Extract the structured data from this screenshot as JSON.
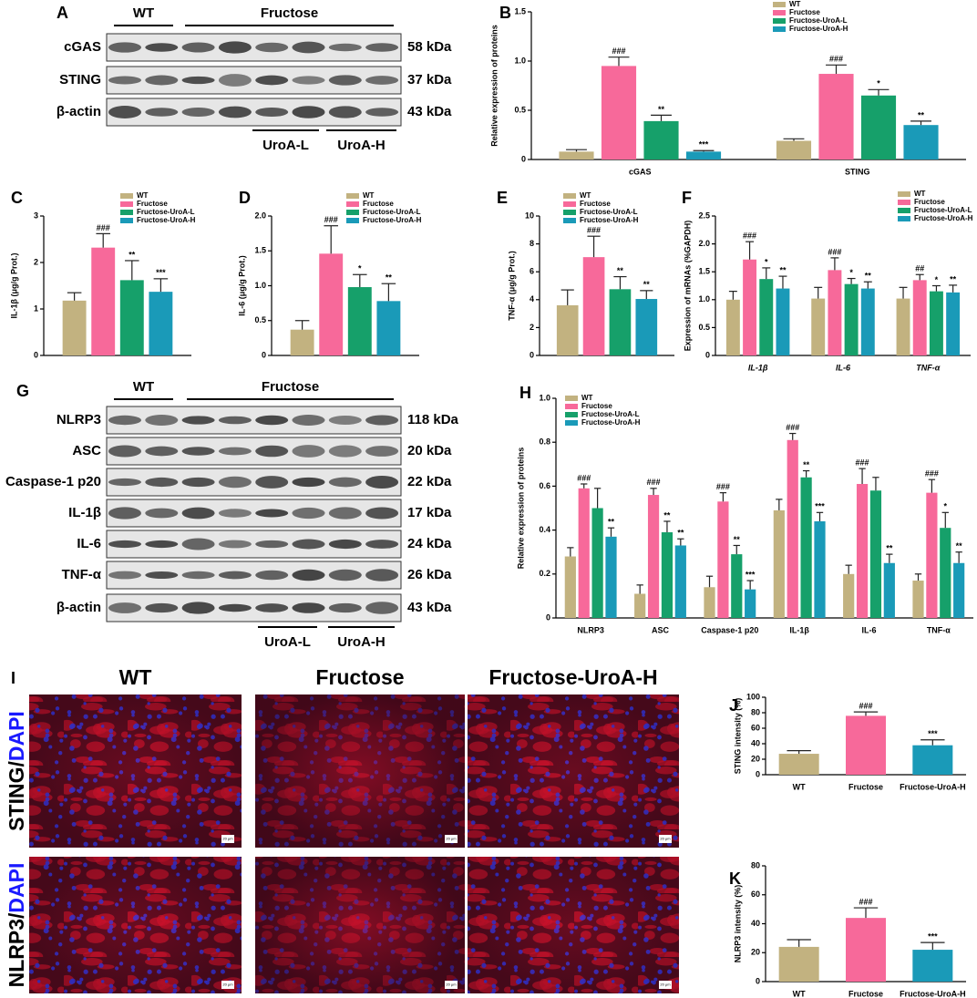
{
  "chart_data": [
    {
      "type": "bar",
      "panel": "B",
      "ylabel": "Relative expression of proteins",
      "categories": [
        "cGAS",
        "STING"
      ],
      "ylim": [
        0,
        1.5
      ],
      "yticks": [
        0,
        0.5,
        {
          "value": 1,
          "label": "1.0"
        },
        1.5
      ],
      "series": [
        {
          "name": "WT",
          "color": "#c2b280",
          "values": [
            0.08,
            0.19
          ],
          "errors": [
            0.02,
            0.02
          ],
          "annotations": [
            null,
            null
          ]
        },
        {
          "name": "Fructose",
          "color": "#f7699a",
          "values": [
            0.95,
            0.87
          ],
          "errors": [
            0.09,
            0.09
          ],
          "annotations": [
            "###",
            "###"
          ]
        },
        {
          "name": "Fructose-UroA-L",
          "color": "#16a06a",
          "values": [
            0.39,
            0.65
          ],
          "errors": [
            0.06,
            0.06
          ],
          "annotations": [
            "**",
            "*"
          ]
        },
        {
          "name": "Fructose-UroA-H",
          "color": "#1a9ab8",
          "values": [
            0.08,
            0.35
          ],
          "errors": [
            0.01,
            0.04
          ],
          "annotations": [
            "***",
            "**"
          ]
        }
      ]
    },
    {
      "type": "bar",
      "panel": "C",
      "ylabel": "IL-1β (μg/g Prot.)",
      "categories": [
        null
      ],
      "ylim": [
        0,
        3
      ],
      "yticks": [
        0,
        1,
        2,
        3
      ],
      "series": [
        {
          "name": "WT",
          "color": "#c2b280",
          "values": [
            1.18
          ],
          "errors": [
            0.17
          ],
          "annotations": [
            null
          ]
        },
        {
          "name": "Fructose",
          "color": "#f7699a",
          "values": [
            2.32
          ],
          "errors": [
            0.3
          ],
          "annotations": [
            "###"
          ]
        },
        {
          "name": "Fructose-UroA-L",
          "color": "#16a06a",
          "values": [
            1.62
          ],
          "errors": [
            0.42
          ],
          "annotations": [
            "**"
          ]
        },
        {
          "name": "Fructose-UroA-H",
          "color": "#1a9ab8",
          "values": [
            1.37
          ],
          "errors": [
            0.28
          ],
          "annotations": [
            "***"
          ]
        }
      ]
    },
    {
      "type": "bar",
      "panel": "D",
      "ylabel": "IL-6 (μg/g Prot.)",
      "categories": [
        null
      ],
      "ylim": [
        0,
        2
      ],
      "yticks": [
        0,
        0.5,
        {
          "value": 1,
          "label": "1.0"
        },
        1.5,
        {
          "value": 2,
          "label": "2.0"
        }
      ],
      "series": [
        {
          "name": "WT",
          "color": "#c2b280",
          "values": [
            0.37
          ],
          "errors": [
            0.13
          ],
          "annotations": [
            null
          ]
        },
        {
          "name": "Fructose",
          "color": "#f7699a",
          "values": [
            1.46
          ],
          "errors": [
            0.4
          ],
          "annotations": [
            "###"
          ]
        },
        {
          "name": "Fructose-UroA-L",
          "color": "#16a06a",
          "values": [
            0.98
          ],
          "errors": [
            0.18
          ],
          "annotations": [
            "*"
          ]
        },
        {
          "name": "Fructose-UroA-H",
          "color": "#1a9ab8",
          "values": [
            0.78
          ],
          "errors": [
            0.25
          ],
          "annotations": [
            "**"
          ]
        }
      ]
    },
    {
      "type": "bar",
      "panel": "E",
      "ylabel": "TNF-α (μg/g Prot.)",
      "categories": [
        null
      ],
      "ylim": [
        0,
        10
      ],
      "yticks": [
        0,
        2,
        4,
        6,
        8,
        10
      ],
      "series": [
        {
          "name": "WT",
          "color": "#c2b280",
          "values": [
            3.6
          ],
          "errors": [
            1.1
          ],
          "annotations": [
            null
          ]
        },
        {
          "name": "Fructose",
          "color": "#f7699a",
          "values": [
            7.05
          ],
          "errors": [
            1.5
          ],
          "annotations": [
            "###"
          ]
        },
        {
          "name": "Fructose-UroA-L",
          "color": "#16a06a",
          "values": [
            4.75
          ],
          "errors": [
            0.9
          ],
          "annotations": [
            "**"
          ]
        },
        {
          "name": "Fructose-UroA-H",
          "color": "#1a9ab8",
          "values": [
            4.05
          ],
          "errors": [
            0.6
          ],
          "annotations": [
            "**"
          ]
        }
      ]
    },
    {
      "type": "bar",
      "panel": "F",
      "ylabel": "Expression of mRNAs (%GAPDH)",
      "italic_categories": true,
      "categories": [
        "IL-1β",
        "IL-6",
        "TNF-α"
      ],
      "ylim": [
        0,
        2.5
      ],
      "yticks": [
        0,
        0.5,
        {
          "value": 1,
          "label": "1.0"
        },
        1.5,
        {
          "value": 2,
          "label": "2.0"
        },
        2.5
      ],
      "series": [
        {
          "name": "WT",
          "color": "#c2b280",
          "values": [
            1.0,
            1.02,
            1.02
          ],
          "errors": [
            0.15,
            0.2,
            0.2
          ],
          "annotations": [
            null,
            null,
            null
          ]
        },
        {
          "name": "Fructose",
          "color": "#f7699a",
          "values": [
            1.72,
            1.53,
            1.35
          ],
          "errors": [
            0.32,
            0.22,
            0.1
          ],
          "annotations": [
            "###",
            "###",
            "##"
          ]
        },
        {
          "name": "Fructose-UroA-L",
          "color": "#16a06a",
          "values": [
            1.37,
            1.28,
            1.15
          ],
          "errors": [
            0.2,
            0.1,
            0.1
          ],
          "annotations": [
            "*",
            "*",
            "*"
          ]
        },
        {
          "name": "Fructose-UroA-H",
          "color": "#1a9ab8",
          "values": [
            1.2,
            1.2,
            1.13
          ],
          "errors": [
            0.22,
            0.12,
            0.13
          ],
          "annotations": [
            "**",
            "**",
            "**"
          ]
        }
      ]
    },
    {
      "type": "bar",
      "panel": "H",
      "ylabel": "Relative expression of proteins",
      "categories": [
        "NLRP3",
        "ASC",
        "Caspase-1 p20",
        "IL-1β",
        "IL-6",
        "TNF-α"
      ],
      "ylim": [
        0,
        1
      ],
      "yticks": [
        0,
        0.2,
        0.4,
        0.6,
        0.8,
        {
          "value": 1,
          "label": "1.0"
        }
      ],
      "series": [
        {
          "name": "WT",
          "color": "#c2b280",
          "values": [
            0.28,
            0.11,
            0.14,
            0.49,
            0.2,
            0.17
          ],
          "errors": [
            0.04,
            0.04,
            0.05,
            0.05,
            0.04,
            0.03
          ],
          "annotations": [
            null,
            null,
            null,
            null,
            null,
            null
          ]
        },
        {
          "name": "Fructose",
          "color": "#f7699a",
          "values": [
            0.59,
            0.56,
            0.53,
            0.81,
            0.61,
            0.57
          ],
          "errors": [
            0.02,
            0.03,
            0.04,
            0.03,
            0.07,
            0.06
          ],
          "annotations": [
            "###",
            "###",
            "###",
            "###",
            "###",
            "###"
          ]
        },
        {
          "name": "Fructose-UroA-L",
          "color": "#16a06a",
          "values": [
            0.5,
            0.39,
            0.29,
            0.64,
            0.58,
            0.41
          ],
          "errors": [
            0.09,
            0.05,
            0.04,
            0.03,
            0.06,
            0.07
          ],
          "annotations": [
            null,
            "**",
            "**",
            "**",
            null,
            "*"
          ]
        },
        {
          "name": "Fructose-UroA-H",
          "color": "#1a9ab8",
          "values": [
            0.37,
            0.33,
            0.13,
            0.44,
            0.25,
            0.25
          ],
          "errors": [
            0.04,
            0.03,
            0.04,
            0.04,
            0.04,
            0.05
          ],
          "annotations": [
            "**",
            "**",
            "***",
            "***",
            "**",
            "**"
          ]
        }
      ]
    },
    {
      "type": "bar",
      "panel": "J",
      "ylabel": "STING intensity (%)",
      "categories": [
        "WT",
        "Fructose",
        "Fructose-UroA-H"
      ],
      "values": [
        27,
        76,
        38
      ],
      "errors": [
        4,
        5,
        7
      ],
      "annotations": [
        null,
        "###",
        "***"
      ],
      "colors": [
        "#c2b280",
        "#f7699a",
        "#1a9ab8"
      ],
      "ylim": [
        0,
        100
      ],
      "yticks": [
        0,
        20,
        40,
        60,
        80,
        100
      ]
    },
    {
      "type": "bar",
      "panel": "K",
      "ylabel": "NLRP3 intensity (%)",
      "categories": [
        "WT",
        "Fructose",
        "Fructose-UroA-H"
      ],
      "values": [
        24,
        44,
        22
      ],
      "errors": [
        5,
        7,
        5
      ],
      "annotations": [
        null,
        "###",
        "***"
      ],
      "colors": [
        "#c2b280",
        "#f7699a",
        "#1a9ab8"
      ],
      "ylim": [
        0,
        80
      ],
      "yticks": [
        0,
        20,
        40,
        60,
        80
      ]
    }
  ],
  "blot_a": {
    "panel": "A",
    "groups": [
      "WT",
      "Fructose"
    ],
    "rows": [
      {
        "name": "cGAS",
        "size": "58 kDa"
      },
      {
        "name": "STING",
        "size": "37 kDa"
      },
      {
        "name": "β-actin",
        "size": "43 kDa"
      }
    ],
    "treatments": [
      "UroA-L",
      "UroA-H"
    ]
  },
  "blot_g": {
    "panel": "G",
    "groups": [
      "WT",
      "Fructose"
    ],
    "rows": [
      {
        "name": "NLRP3",
        "size": "118 kDa"
      },
      {
        "name": "ASC",
        "size": "20 kDa"
      },
      {
        "name": "Caspase-1  p20",
        "size": "22 kDa"
      },
      {
        "name": "IL-1β",
        "size": "17 kDa"
      },
      {
        "name": "IL-6",
        "size": "24 kDa"
      },
      {
        "name": "TNF-α",
        "size": "26 kDa"
      },
      {
        "name": "β-actin",
        "size": "43 kDa"
      }
    ],
    "treatments": [
      "UroA-L",
      "UroA-H"
    ]
  },
  "panel_i": {
    "panel": "I",
    "columns": [
      "WT",
      "Fructose",
      "Fructose-UroA-H"
    ],
    "rows": [
      [
        "STING/",
        "DAPI"
      ],
      [
        "NLRP3/",
        "DAPI"
      ]
    ],
    "scale_bar": "20 μm"
  }
}
